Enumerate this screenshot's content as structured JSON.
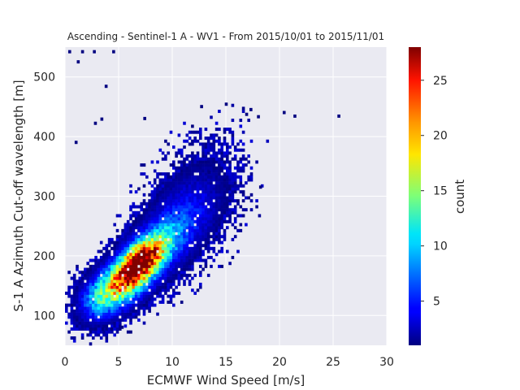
{
  "chart_data": {
    "type": "heatmap",
    "title": "Ascending - Sentinel-1 A - WV1 - From 2015/10/01 to 2015/11/01",
    "xlabel": "ECMWF Wind Speed [m/s]",
    "ylabel": "S-1 A Azimuth Cut-off wavelength [m]",
    "xlim": [
      0,
      30
    ],
    "ylim": [
      50,
      550
    ],
    "xticks": [
      0,
      5,
      10,
      15,
      20,
      25,
      30
    ],
    "yticks": [
      100,
      200,
      300,
      400,
      500
    ],
    "grid": true,
    "colorbar": {
      "label": "count",
      "range": [
        1,
        28
      ],
      "ticks": [
        5,
        10,
        15,
        20,
        25
      ],
      "colormap": "jet"
    },
    "density_model": {
      "description_units": "x in m/s, y in m",
      "core": [
        {
          "x": 7.0,
          "y": 190,
          "sx": 1.6,
          "sy": 28,
          "rho": 0.6,
          "peak": 26
        },
        {
          "x": 5.2,
          "y": 150,
          "sx": 1.8,
          "sy": 30,
          "rho": 0.5,
          "peak": 13
        },
        {
          "x": 9.5,
          "y": 230,
          "sx": 2.3,
          "sy": 45,
          "rho": 0.55,
          "peak": 6
        },
        {
          "x": 3.0,
          "y": 130,
          "sx": 1.2,
          "sy": 25,
          "rho": 0.2,
          "peak": 5
        },
        {
          "x": 12.0,
          "y": 290,
          "sx": 2.6,
          "sy": 60,
          "rho": 0.4,
          "peak": 2.2
        }
      ],
      "outliers": [
        {
          "x": 1.1,
          "y": 528
        },
        {
          "x": 0.3,
          "y": 545
        },
        {
          "x": 2.6,
          "y": 545
        },
        {
          "x": 4.4,
          "y": 545
        },
        {
          "x": 1.5,
          "y": 545
        },
        {
          "x": 3.7,
          "y": 487
        },
        {
          "x": 3.3,
          "y": 432
        },
        {
          "x": 2.7,
          "y": 425
        },
        {
          "x": 7.3,
          "y": 433
        },
        {
          "x": 0.9,
          "y": 393
        },
        {
          "x": 12.6,
          "y": 453
        },
        {
          "x": 14.9,
          "y": 457
        },
        {
          "x": 17.2,
          "y": 448
        },
        {
          "x": 20.3,
          "y": 443
        },
        {
          "x": 21.3,
          "y": 437
        },
        {
          "x": 25.4,
          "y": 437
        },
        {
          "x": 16.8,
          "y": 440
        },
        {
          "x": 17.9,
          "y": 436
        },
        {
          "x": 18.1,
          "y": 318
        },
        {
          "x": 13.3,
          "y": 343
        },
        {
          "x": 4.2,
          "y": 80
        },
        {
          "x": 5.2,
          "y": 83
        },
        {
          "x": 3.4,
          "y": 80
        }
      ]
    }
  }
}
